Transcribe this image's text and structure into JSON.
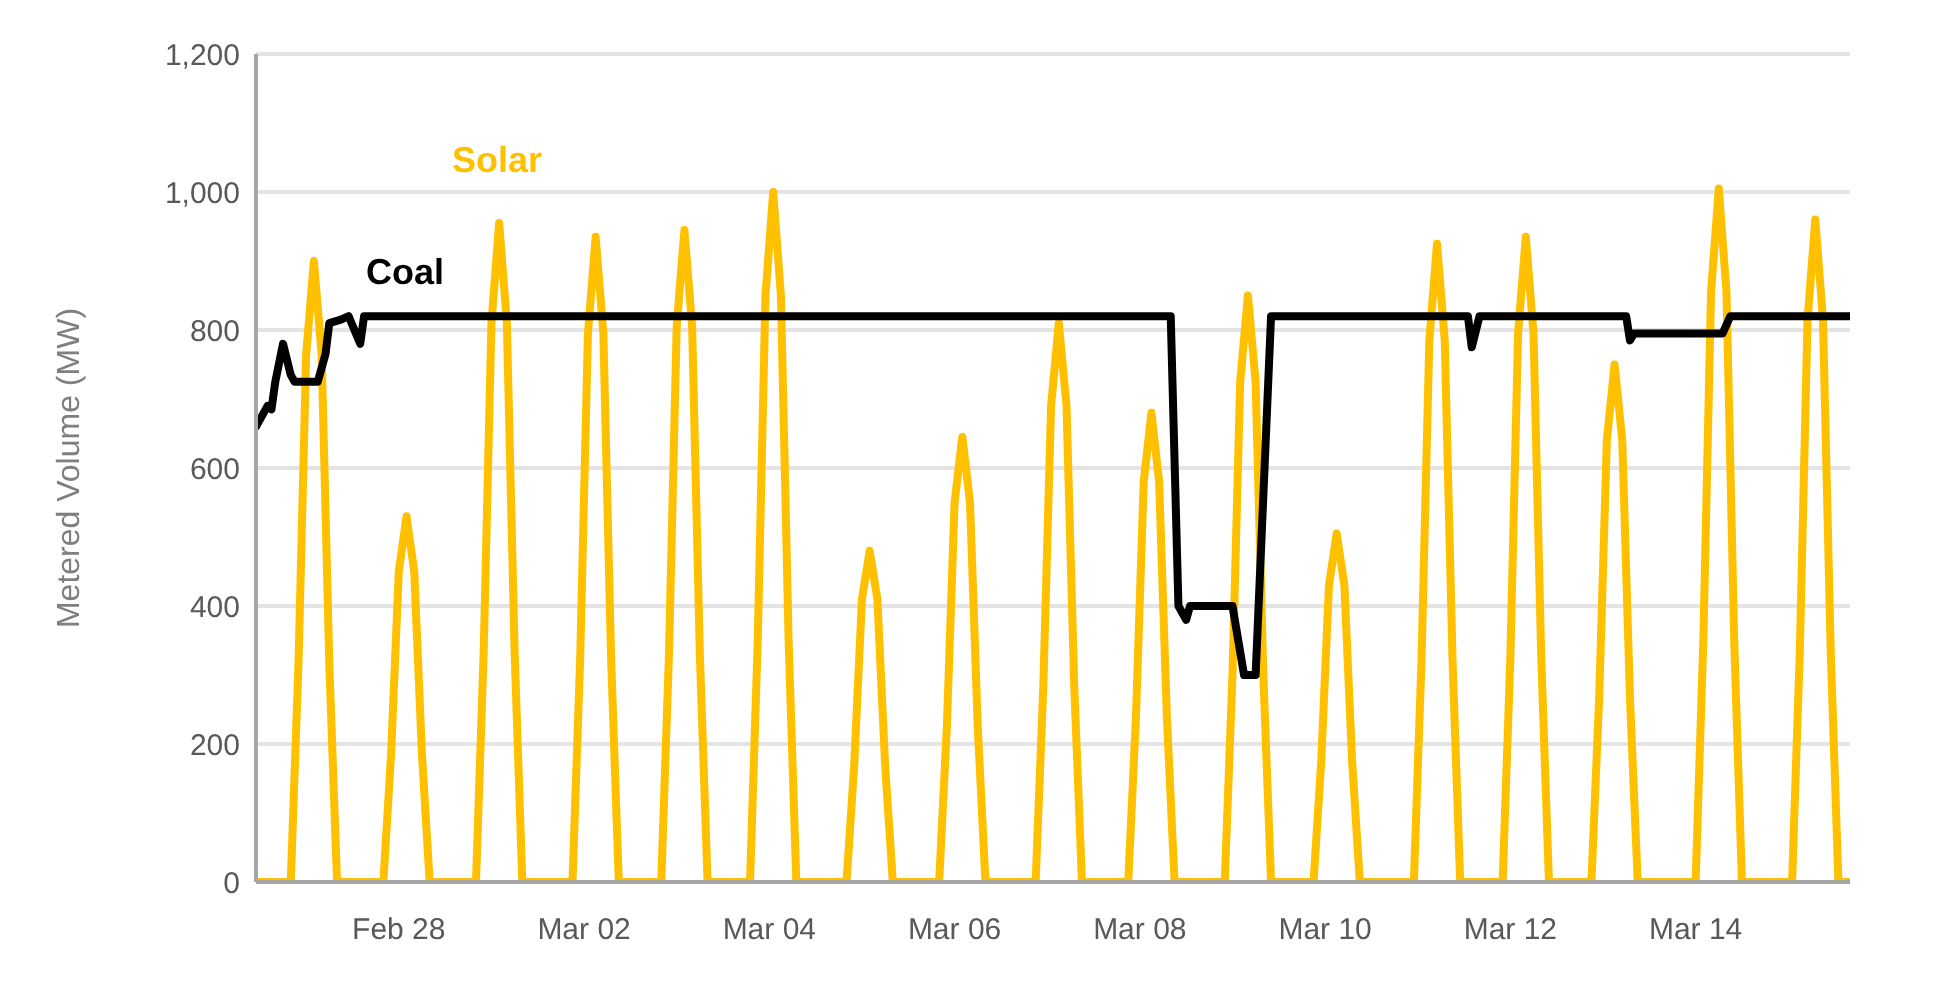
{
  "chart_data": {
    "type": "line",
    "ylabel": "Metered Volume (MW)",
    "grid": "y",
    "line_style": "solid",
    "xlim": [
      "--02-26T11:00",
      "--03-15T16:00"
    ],
    "xticks": [
      {
        "value": "--02-28",
        "label": "Feb 28"
      },
      {
        "value": "--03-02",
        "label": "Mar 02"
      },
      {
        "value": "--03-04",
        "label": "Mar 04"
      },
      {
        "value": "--03-06",
        "label": "Mar 06"
      },
      {
        "value": "--03-08",
        "label": "Mar 08"
      },
      {
        "value": "--03-10",
        "label": "Mar 10"
      },
      {
        "value": "--03-12",
        "label": "Mar 12"
      },
      {
        "value": "--03-14",
        "label": "Mar 14"
      }
    ],
    "ylim": [
      0,
      1200
    ],
    "yticks": [
      0,
      200,
      400,
      600,
      800,
      {
        "value": 1000,
        "label": "1,000"
      },
      {
        "value": 1200,
        "label": "1,200"
      }
    ],
    "series": [
      {
        "name": "Solar",
        "color": "#ffc000",
        "x": [
          "--02-26T11:00",
          "--02-26T20:00",
          "--02-26T22:00",
          "--02-27T00:00",
          "--02-27T02:00",
          "--02-27T04:00",
          "--02-27T06:00",
          "--02-27T08:00",
          "--02-27T20:00",
          "--02-27T22:00",
          "--02-28T00:00",
          "--02-28T02:00",
          "--02-28T04:00",
          "--02-28T06:00",
          "--02-28T08:00",
          "--02-28T20:00",
          "--02-28T22:00",
          "--03-01T00:00",
          "--03-01T02:00",
          "--03-01T04:00",
          "--03-01T06:00",
          "--03-01T08:00",
          "--03-01T21:00",
          "--03-01T23:00",
          "--03-02T01:00",
          "--03-02T03:00",
          "--03-02T05:00",
          "--03-02T07:00",
          "--03-02T09:00",
          "--03-02T20:00",
          "--03-02T22:00",
          "--03-03T00:00",
          "--03-03T02:00",
          "--03-03T04:00",
          "--03-03T06:00",
          "--03-03T08:00",
          "--03-03T19:00",
          "--03-03T21:00",
          "--03-03T23:00",
          "--03-04T01:00",
          "--03-04T03:00",
          "--03-04T05:00",
          "--03-04T07:00",
          "--03-04T20:00",
          "--03-04T22:00",
          "--03-05T00:00",
          "--03-05T02:00",
          "--03-05T04:00",
          "--03-05T06:00",
          "--03-05T08:00",
          "--03-05T20:00",
          "--03-05T22:00",
          "--03-06T00:00",
          "--03-06T02:00",
          "--03-06T04:00",
          "--03-06T06:00",
          "--03-06T08:00",
          "--03-06T21:00",
          "--03-06T23:00",
          "--03-07T01:00",
          "--03-07T03:00",
          "--03-07T05:00",
          "--03-07T07:00",
          "--03-07T09:00",
          "--03-07T21:00",
          "--03-07T23:00",
          "--03-08T01:00",
          "--03-08T03:00",
          "--03-08T05:00",
          "--03-08T07:00",
          "--03-08T09:00",
          "--03-08T22:00",
          "--03-09T00:00",
          "--03-09T02:00",
          "--03-09T04:00",
          "--03-09T06:00",
          "--03-09T08:00",
          "--03-09T10:00",
          "--03-09T21:00",
          "--03-09T23:00",
          "--03-10T01:00",
          "--03-10T03:00",
          "--03-10T05:00",
          "--03-10T07:00",
          "--03-10T09:00",
          "--03-10T23:00",
          "--03-11T01:00",
          "--03-11T03:00",
          "--03-11T05:00",
          "--03-11T07:00",
          "--03-11T09:00",
          "--03-11T11:00",
          "--03-11T22:00",
          "--03-12T00:00",
          "--03-12T02:00",
          "--03-12T04:00",
          "--03-12T06:00",
          "--03-12T08:00",
          "--03-12T10:00",
          "--03-12T21:00",
          "--03-12T23:00",
          "--03-13T01:00",
          "--03-13T03:00",
          "--03-13T05:00",
          "--03-13T07:00",
          "--03-13T09:00",
          "--03-14T00:00",
          "--03-14T02:00",
          "--03-14T04:00",
          "--03-14T06:00",
          "--03-14T08:00",
          "--03-14T10:00",
          "--03-14T12:00",
          "--03-15T01:00",
          "--03-15T03:00",
          "--03-15T05:00",
          "--03-15T07:00",
          "--03-15T09:00",
          "--03-15T11:00",
          "--03-15T13:00",
          "--03-15T16:00"
        ],
        "values": [
          0,
          0,
          315,
          765,
          900,
          765,
          315,
          0,
          0,
          185,
          450,
          530,
          450,
          185,
          0,
          0,
          335,
          810,
          955,
          810,
          335,
          0,
          0,
          325,
          795,
          935,
          795,
          325,
          0,
          0,
          330,
          805,
          945,
          805,
          330,
          0,
          0,
          350,
          850,
          1000,
          850,
          350,
          0,
          0,
          170,
          410,
          480,
          410,
          170,
          0,
          0,
          225,
          550,
          645,
          550,
          225,
          0,
          0,
          285,
          690,
          810,
          690,
          285,
          0,
          0,
          240,
          580,
          680,
          580,
          240,
          0,
          0,
          300,
          725,
          850,
          725,
          300,
          0,
          0,
          175,
          430,
          505,
          430,
          175,
          0,
          0,
          325,
          785,
          925,
          785,
          325,
          0,
          0,
          325,
          795,
          935,
          795,
          325,
          0,
          0,
          265,
          640,
          750,
          640,
          265,
          0,
          0,
          350,
          855,
          1005,
          855,
          350,
          0,
          0,
          335,
          815,
          960,
          815,
          335,
          0,
          0
        ]
      },
      {
        "name": "Coal",
        "color": "#000000",
        "x": [
          "--02-26T11:00",
          "--02-26T14:00",
          "--02-26T15:00",
          "--02-26T16:00",
          "--02-26T18:00",
          "--02-26T20:00",
          "--02-26T21:00",
          "--02-27T03:00",
          "--02-27T05:00",
          "--02-27T06:00",
          "--02-27T09:00",
          "--02-27T11:00",
          "--02-27T14:00",
          "--02-27T15:00",
          "--03-08T08:00",
          "--03-08T10:00",
          "--03-08T12:00",
          "--03-08T13:00",
          "--03-09T00:00",
          "--03-09T03:00",
          "--03-09T06:00",
          "--03-09T10:00",
          "--03-11T13:00",
          "--03-11T14:00",
          "--03-11T16:00",
          "--03-13T06:00",
          "--03-13T07:00",
          "--03-13T08:00",
          "--03-14T07:00",
          "--03-14T09:00",
          "--03-15T16:00"
        ],
        "values": [
          660,
          690,
          685,
          725,
          780,
          735,
          725,
          725,
          765,
          810,
          815,
          820,
          780,
          820,
          820,
          400,
          380,
          400,
          400,
          300,
          300,
          820,
          820,
          775,
          820,
          820,
          785,
          795,
          795,
          820,
          820
        ]
      }
    ]
  }
}
